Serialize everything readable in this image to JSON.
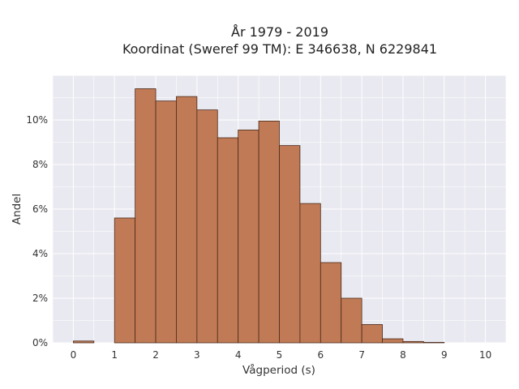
{
  "chart_data": {
    "type": "bar",
    "title_lines": [
      "År 1979 - 2019",
      "Koordinat (Sweref 99 TM): E 346638, N 6229841"
    ],
    "xlabel": "Vågperiod (s)",
    "ylabel": "Andel",
    "xlim": [
      -0.5,
      10.5
    ],
    "ylim": [
      0,
      12.0
    ],
    "x_ticks": [
      "0",
      "1",
      "2",
      "3",
      "4",
      "5",
      "6",
      "7",
      "8",
      "9",
      "10"
    ],
    "y_ticks": [
      "0%",
      "2%",
      "4%",
      "6%",
      "8%",
      "10%"
    ],
    "y_tick_values": [
      0,
      2,
      4,
      6,
      8,
      10
    ],
    "bin_width": 0.5,
    "bins_start": [
      0,
      0.5,
      1,
      1.5,
      2,
      2.5,
      3,
      3.5,
      4,
      4.5,
      5,
      5.5,
      6,
      6.5,
      7,
      7.5,
      8,
      8.5,
      9,
      9.5
    ],
    "values": [
      0.08,
      0.0,
      5.6,
      11.4,
      10.85,
      11.05,
      10.45,
      9.2,
      9.55,
      9.95,
      8.85,
      6.25,
      3.6,
      2.0,
      0.82,
      0.18,
      0.06,
      0.02,
      0.0,
      0.0
    ],
    "grid": true,
    "colors": {
      "bar_fill": "#c07a55",
      "bar_edge": "#4a2a1a",
      "plot_bg": "#e9e9f1",
      "grid": "#ffffff"
    }
  }
}
